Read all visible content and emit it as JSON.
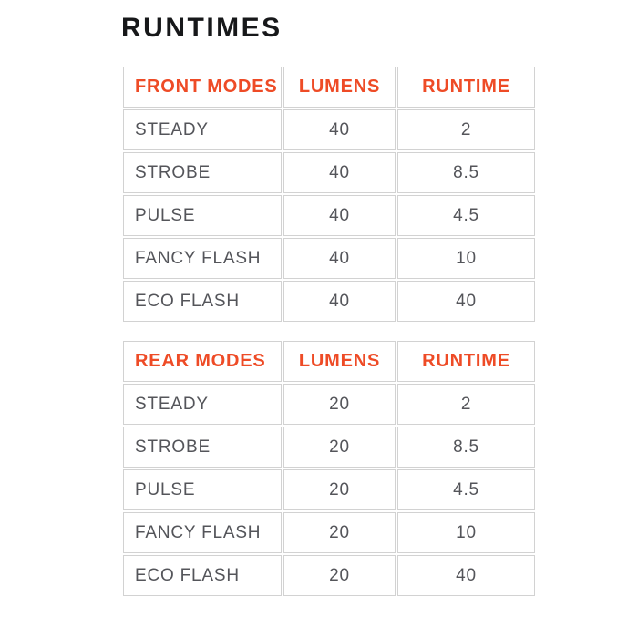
{
  "page": {
    "title": "RUNTIMES"
  },
  "colors": {
    "accent": "#ee4b26",
    "body_text": "#54555a",
    "title_text": "#17181a",
    "border": "#d2d2d2",
    "background": "#ffffff"
  },
  "chart_data": [
    {
      "type": "table",
      "title": "RUNTIMES",
      "headers": [
        "FRONT MODES",
        "LUMENS",
        "RUNTIME"
      ],
      "rows": [
        [
          "STEADY",
          "40",
          "2"
        ],
        [
          "STROBE",
          "40",
          "8.5"
        ],
        [
          "PULSE",
          "40",
          "4.5"
        ],
        [
          "FANCY FLASH",
          "40",
          "10"
        ],
        [
          "ECO FLASH",
          "40",
          "40"
        ]
      ]
    },
    {
      "type": "table",
      "title": "RUNTIMES",
      "headers": [
        "REAR MODES",
        "LUMENS",
        "RUNTIME"
      ],
      "rows": [
        [
          "STEADY",
          "20",
          "2"
        ],
        [
          "STROBE",
          "20",
          "8.5"
        ],
        [
          "PULSE",
          "20",
          "4.5"
        ],
        [
          "FANCY FLASH",
          "20",
          "10"
        ],
        [
          "ECO FLASH",
          "20",
          "40"
        ]
      ]
    }
  ]
}
